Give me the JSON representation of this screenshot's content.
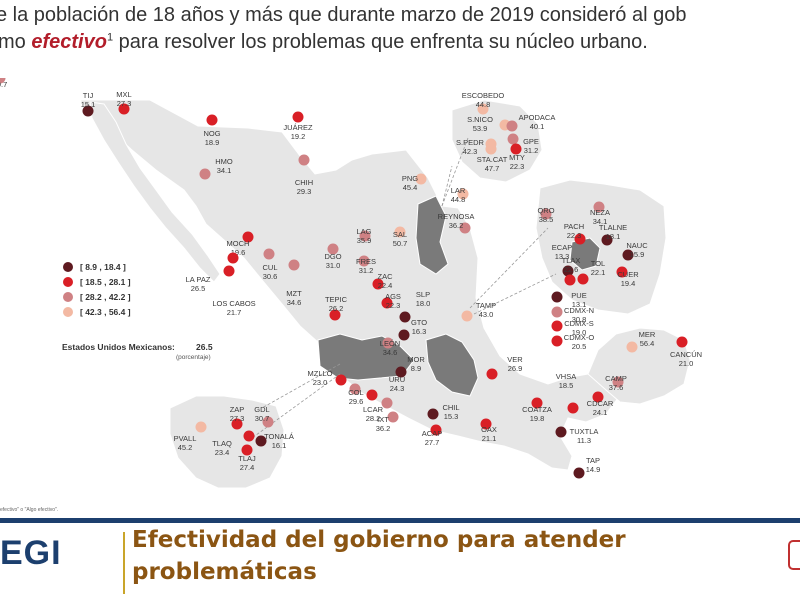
{
  "header": {
    "line1": "e la población de 18 años y más que durante marzo de 2019 consideró al gob",
    "line2_pre": "mo ",
    "line2_em": "efectivo",
    "line2_sup": "1",
    "line2_post": " para resolver los problemas que enfrenta su núcleo urbano."
  },
  "legend": {
    "ranges": [
      {
        "label": "[   8.9 , 18.4 ]",
        "color": "#5e1a20"
      },
      {
        "label": "[ 18.5 , 28.1 ]",
        "color": "#d91f26"
      },
      {
        "label": "[ 28.2 , 42.2 ]",
        "color": "#cf8184"
      },
      {
        "label": "[ 42.3 , 56.4 ]",
        "color": "#f3b9a3"
      }
    ],
    "national_label": "Estados Unidos Mexicanos:",
    "national_value": "26.5",
    "national_unit": "(porcentaje)"
  },
  "cities": [
    {
      "name": "TIJ",
      "value": "15.1",
      "cls": 0
    },
    {
      "name": "MXL",
      "value": "27.3",
      "cls": 1
    },
    {
      "name": "NOG",
      "value": "18.9",
      "cls": 1
    },
    {
      "name": "JUÁREZ",
      "value": "19.2",
      "cls": 1
    },
    {
      "name": "HMO",
      "value": "34.1",
      "cls": 2
    },
    {
      "name": "CHIH",
      "value": "29.3",
      "cls": 2
    },
    {
      "name": "MOCH",
      "value": "19.6",
      "cls": 1
    },
    {
      "name": "LA PAZ",
      "value": "26.5",
      "cls": 1
    },
    {
      "name": "LOS CABOS",
      "value": "21.7",
      "cls": 1
    },
    {
      "name": "CUL",
      "value": "30.6",
      "cls": 2
    },
    {
      "name": "MZT",
      "value": "34.6",
      "cls": 2
    },
    {
      "name": "DGO",
      "value": "31.0",
      "cls": 2
    },
    {
      "name": "LAG",
      "value": "35.9",
      "cls": 2
    },
    {
      "name": "SAL",
      "value": "50.7",
      "cls": 3
    },
    {
      "name": "PNG",
      "value": "45.4",
      "cls": 3
    },
    {
      "name": "LAR",
      "value": "44.8",
      "cls": 3
    },
    {
      "name": "REYNOSA",
      "value": "36.2",
      "cls": 2
    },
    {
      "name": "FRES",
      "value": "31.2",
      "cls": 2
    },
    {
      "name": "ZAC",
      "value": "22.4",
      "cls": 1
    },
    {
      "name": "AGS",
      "value": "22.3",
      "cls": 1
    },
    {
      "name": "SLP",
      "value": "18.0",
      "cls": 0
    },
    {
      "name": "TAMP",
      "value": "43.0",
      "cls": 3
    },
    {
      "name": "TEPIC",
      "value": "26.2",
      "cls": 1
    },
    {
      "name": "GTO",
      "value": "16.3",
      "cls": 0
    },
    {
      "name": "LEÓN",
      "value": "34.6",
      "cls": 2
    },
    {
      "name": "MOR",
      "value": "8.9",
      "cls": 0
    },
    {
      "name": "VER",
      "value": "26.9",
      "cls": 1
    },
    {
      "name": "MZLLO",
      "value": "23.0",
      "cls": 1
    },
    {
      "name": "COL",
      "value": "29.6",
      "cls": 2
    },
    {
      "name": "URU",
      "value": "24.3",
      "cls": 1
    },
    {
      "name": "LCAR",
      "value": "28.2",
      "cls": 2
    },
    {
      "name": "IXT",
      "value": "36.2",
      "cls": 2
    },
    {
      "name": "CHIL",
      "value": "15.3",
      "cls": 0
    },
    {
      "name": "ACAP",
      "value": "27.7",
      "cls": 1
    },
    {
      "name": "OAX",
      "value": "21.1",
      "cls": 1
    },
    {
      "name": "COATZA",
      "value": "19.8",
      "cls": 1
    },
    {
      "name": "VHSA",
      "value": "18.5",
      "cls": 1
    },
    {
      "name": "CDCAR",
      "value": "24.1",
      "cls": 1
    },
    {
      "name": "TUXTLA",
      "value": "11.3",
      "cls": 0
    },
    {
      "name": "TAP",
      "value": "14.9",
      "cls": 0
    },
    {
      "name": "CAMP",
      "value": "37.6",
      "cls": 2
    },
    {
      "name": "MER",
      "value": "56.4",
      "cls": 3
    },
    {
      "name": "CANCÚN",
      "value": "21.0",
      "cls": 1
    },
    {
      "name": "ZAP",
      "value": "27.3",
      "cls": 1
    },
    {
      "name": "GDL",
      "value": "30.7",
      "cls": 2
    },
    {
      "name": "PVALL",
      "value": "45.2",
      "cls": 3
    },
    {
      "name": "TLAQ",
      "value": "23.4",
      "cls": 1
    },
    {
      "name": "TONALÁ",
      "value": "16.1",
      "cls": 0
    },
    {
      "name": "TLAJ",
      "value": "27.4",
      "cls": 1
    },
    {
      "name": "ESCOBEDO",
      "value": "44.8",
      "cls": 3
    },
    {
      "name": "S.NICO",
      "value": "53.9",
      "cls": 3
    },
    {
      "name": "APODACA",
      "value": "40.1",
      "cls": 2
    },
    {
      "name": "GPE",
      "value": "31.2",
      "cls": 2
    },
    {
      "name": "S.PEDR",
      "value": "42.3",
      "cls": 3
    },
    {
      "name": "STA.CAT",
      "value": "47.7",
      "cls": 3
    },
    {
      "name": "MTY",
      "value": "22.3",
      "cls": 1
    },
    {
      "name": "QRO",
      "value": "38.5",
      "cls": 2
    },
    {
      "name": "NEZA",
      "value": "34.1",
      "cls": 2
    },
    {
      "name": "PACH",
      "value": "22.3",
      "cls": 1
    },
    {
      "name": "TLALNE",
      "value": "18.1",
      "cls": 0
    },
    {
      "name": "ECAP",
      "value": "13.3",
      "cls": 0
    },
    {
      "name": "NAUC",
      "value": "15.9",
      "cls": 0
    },
    {
      "name": "TLAX",
      "value": "22.6",
      "cls": 1
    },
    {
      "name": "TOL",
      "value": "22.1",
      "cls": 1
    },
    {
      "name": "CUER",
      "value": "19.4",
      "cls": 1
    },
    {
      "name": "PUE",
      "value": "13.1",
      "cls": 0
    },
    {
      "name": "CDMX-N",
      "value": "30.8",
      "cls": 2
    },
    {
      "name": "CDMX-S",
      "value": "19.0",
      "cls": 1
    },
    {
      "name": "CDMX-O",
      "value": "20.5",
      "cls": 1
    },
    {
      "name": "CDMX-P",
      "value": "29.7",
      "cls": 2
    }
  ],
  "footnote": "efectivo\" o \"Algo efectivo\".",
  "footer": {
    "logo": "EGI",
    "title": "Efectividad del gobierno para atender problemáticas"
  }
}
